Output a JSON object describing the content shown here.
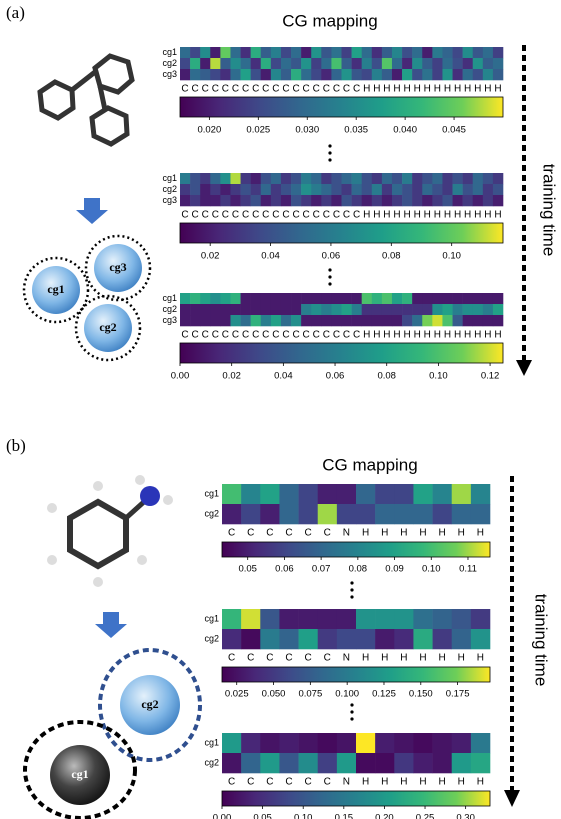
{
  "panels": [
    {
      "label": "(a)",
      "title": "CG mapping",
      "side_label": "training time",
      "beads": [
        "cg1",
        "cg3",
        "cg2"
      ]
    },
    {
      "label": "(b)",
      "title": "CG mapping",
      "side_label": "training time",
      "beads": [
        "cg2",
        "cg1"
      ]
    }
  ],
  "chart_data": [
    {
      "type": "heatmap",
      "colormap": "viridis",
      "row_labels": [
        "cg1",
        "cg2",
        "cg3"
      ],
      "col_labels": [
        "C",
        "C",
        "C",
        "C",
        "C",
        "C",
        "C",
        "C",
        "C",
        "C",
        "C",
        "C",
        "C",
        "C",
        "C",
        "C",
        "C",
        "C",
        "H",
        "H",
        "H",
        "H",
        "H",
        "H",
        "H",
        "H",
        "H",
        "H",
        "H",
        "H",
        "H",
        "H"
      ],
      "values": [
        [
          0.03,
          0.025,
          0.035,
          0.02,
          0.045,
          0.03,
          0.022,
          0.04,
          0.028,
          0.033,
          0.025,
          0.03,
          0.02,
          0.036,
          0.027,
          0.031,
          0.024,
          0.038,
          0.03,
          0.022,
          0.028,
          0.034,
          0.026,
          0.03,
          0.02,
          0.032,
          0.029,
          0.025,
          0.035,
          0.027,
          0.03,
          0.024
        ],
        [
          0.025,
          0.04,
          0.02,
          0.048,
          0.028,
          0.035,
          0.03,
          0.022,
          0.04,
          0.025,
          0.03,
          0.027,
          0.036,
          0.024,
          0.03,
          0.043,
          0.028,
          0.022,
          0.033,
          0.026,
          0.044,
          0.03,
          0.021,
          0.035,
          0.028,
          0.024,
          0.03,
          0.026,
          0.022,
          0.036,
          0.028,
          0.03
        ],
        [
          0.02,
          0.03,
          0.028,
          0.025,
          0.022,
          0.03,
          0.038,
          0.026,
          0.02,
          0.034,
          0.028,
          0.04,
          0.03,
          0.025,
          0.021,
          0.029,
          0.036,
          0.027,
          0.025,
          0.033,
          0.028,
          0.02,
          0.038,
          0.026,
          0.031,
          0.024,
          0.036,
          0.022,
          0.03,
          0.026,
          0.034,
          0.028
        ]
      ],
      "clim": [
        0.017,
        0.05
      ],
      "cticks": [
        {
          "value": 0.02,
          "label": "0.020"
        },
        0.025,
        {
          "value": 0.03,
          "label": "0.030"
        },
        0.035,
        {
          "value": 0.04,
          "label": "0.040"
        },
        0.045
      ]
    },
    {
      "type": "heatmap",
      "colormap": "viridis",
      "row_labels": [
        "cg1",
        "cg2",
        "cg3"
      ],
      "col_labels": [
        "C",
        "C",
        "C",
        "C",
        "C",
        "C",
        "C",
        "C",
        "C",
        "C",
        "C",
        "C",
        "C",
        "C",
        "C",
        "C",
        "C",
        "C",
        "H",
        "H",
        "H",
        "H",
        "H",
        "H",
        "H",
        "H",
        "H",
        "H",
        "H",
        "H",
        "H",
        "H"
      ],
      "values": [
        [
          0.06,
          0.04,
          0.03,
          0.05,
          0.07,
          0.11,
          0.03,
          0.02,
          0.04,
          0.05,
          0.03,
          0.04,
          0.06,
          0.05,
          0.03,
          0.04,
          0.05,
          0.06,
          0.04,
          0.03,
          0.05,
          0.04,
          0.06,
          0.03,
          0.04,
          0.05,
          0.03,
          0.04,
          0.03,
          0.05,
          0.04,
          0.03
        ],
        [
          0.03,
          0.04,
          0.02,
          0.03,
          0.02,
          0.03,
          0.04,
          0.03,
          0.05,
          0.03,
          0.04,
          0.05,
          0.07,
          0.06,
          0.05,
          0.04,
          0.03,
          0.05,
          0.04,
          0.06,
          0.03,
          0.05,
          0.04,
          0.03,
          0.05,
          0.04,
          0.03,
          0.06,
          0.04,
          0.05,
          0.03,
          0.04
        ],
        [
          0.02,
          0.03,
          0.02,
          0.02,
          0.03,
          0.02,
          0.03,
          0.04,
          0.02,
          0.03,
          0.02,
          0.04,
          0.03,
          0.02,
          0.03,
          0.02,
          0.04,
          0.03,
          0.02,
          0.03,
          0.02,
          0.03,
          0.04,
          0.03,
          0.02,
          0.03,
          0.04,
          0.02,
          0.03,
          0.02,
          0.03,
          0.02
        ]
      ],
      "clim": [
        0.01,
        0.117
      ],
      "cticks": [
        0.02,
        0.04,
        0.06,
        0.08,
        {
          "value": 0.1,
          "label": "0.10"
        }
      ]
    },
    {
      "type": "heatmap",
      "colormap": "viridis",
      "row_labels": [
        "cg1",
        "cg2",
        "cg3"
      ],
      "col_labels": [
        "C",
        "C",
        "C",
        "C",
        "C",
        "C",
        "C",
        "C",
        "C",
        "C",
        "C",
        "C",
        "C",
        "C",
        "C",
        "C",
        "C",
        "C",
        "H",
        "H",
        "H",
        "H",
        "H",
        "H",
        "H",
        "H",
        "H",
        "H",
        "H",
        "H",
        "H",
        "H"
      ],
      "values": [
        [
          0.08,
          0.09,
          0.08,
          0.07,
          0.08,
          0.09,
          0.01,
          0.01,
          0.01,
          0.01,
          0.01,
          0.01,
          0.01,
          0.01,
          0.01,
          0.01,
          0.01,
          0.01,
          0.1,
          0.09,
          0.1,
          0.08,
          0.09,
          0.01,
          0.01,
          0.01,
          0.01,
          0.01,
          0.01,
          0.01,
          0.01,
          0.01
        ],
        [
          0.01,
          0.01,
          0.01,
          0.01,
          0.01,
          0.01,
          0.01,
          0.01,
          0.01,
          0.01,
          0.01,
          0.01,
          0.06,
          0.07,
          0.06,
          0.07,
          0.08,
          0.06,
          0.02,
          0.02,
          0.02,
          0.02,
          0.02,
          0.02,
          0.02,
          0.07,
          0.08,
          0.06,
          0.07,
          0.07,
          0.06,
          0.08
        ],
        [
          0.01,
          0.01,
          0.01,
          0.01,
          0.01,
          0.07,
          0.05,
          0.09,
          0.06,
          0.08,
          0.05,
          0.07,
          0.01,
          0.01,
          0.01,
          0.01,
          0.01,
          0.01,
          0.01,
          0.01,
          0.01,
          0.01,
          0.03,
          0.05,
          0.11,
          0.12,
          0.1,
          0.04,
          0.01,
          0.01,
          0.01,
          0.01
        ]
      ],
      "clim": [
        0,
        0.125
      ],
      "cticks": [
        {
          "value": 0,
          "label": "0.00"
        },
        0.02,
        0.04,
        0.06,
        0.08,
        {
          "value": 0.1,
          "label": "0.10"
        },
        0.12
      ]
    },
    {
      "type": "heatmap",
      "colormap": "viridis",
      "row_labels": [
        "cg1",
        "cg2"
      ],
      "col_labels": [
        "C",
        "C",
        "C",
        "C",
        "C",
        "C",
        "N",
        "H",
        "H",
        "H",
        "H",
        "H",
        "H",
        "H"
      ],
      "values": [
        [
          0.1,
          0.08,
          0.09,
          0.07,
          0.06,
          0.05,
          0.05,
          0.07,
          0.06,
          0.06,
          0.09,
          0.08,
          0.11,
          0.08
        ],
        [
          0.05,
          0.06,
          0.05,
          0.07,
          0.06,
          0.11,
          0.06,
          0.06,
          0.07,
          0.07,
          0.07,
          0.06,
          0.07,
          0.07
        ]
      ],
      "clim": [
        0.043,
        0.116
      ],
      "cticks": [
        0.05,
        0.06,
        0.07,
        0.08,
        0.09,
        {
          "value": 0.1,
          "label": "0.10"
        },
        0.11
      ]
    },
    {
      "type": "heatmap",
      "colormap": "viridis",
      "row_labels": [
        "cg1",
        "cg2"
      ],
      "col_labels": [
        "C",
        "C",
        "C",
        "C",
        "C",
        "C",
        "N",
        "H",
        "H",
        "H",
        "H",
        "H",
        "H",
        "H"
      ],
      "values": [
        [
          0.15,
          0.19,
          0.07,
          0.03,
          0.03,
          0.03,
          0.03,
          0.12,
          0.12,
          0.12,
          0.09,
          0.08,
          0.07,
          0.05
        ],
        [
          0.04,
          0.02,
          0.1,
          0.08,
          0.13,
          0.05,
          0.06,
          0.06,
          0.03,
          0.04,
          0.14,
          0.05,
          0.08,
          0.12
        ]
      ],
      "clim": [
        0.015,
        0.197
      ],
      "cticks": [
        0.025,
        {
          "value": 0.05,
          "label": "0.050"
        },
        0.075,
        {
          "value": 0.1,
          "label": "0.100"
        },
        0.125,
        {
          "value": 0.15,
          "label": "0.150"
        },
        0.175
      ]
    },
    {
      "type": "heatmap",
      "colormap": "viridis",
      "row_labels": [
        "cg1",
        "cg2"
      ],
      "col_labels": [
        "C",
        "C",
        "C",
        "C",
        "C",
        "C",
        "N",
        "H",
        "H",
        "H",
        "H",
        "H",
        "H",
        "H"
      ],
      "values": [
        [
          0.2,
          0.04,
          0.02,
          0.03,
          0.02,
          0.01,
          0.02,
          0.33,
          0.03,
          0.02,
          0.01,
          0.02,
          0.03,
          0.15
        ],
        [
          0.02,
          0.12,
          0.2,
          0.1,
          0.18,
          0.07,
          0.2,
          0.01,
          0.01,
          0.06,
          0.03,
          0.02,
          0.2,
          0.22
        ]
      ],
      "clim": [
        0,
        0.33
      ],
      "cticks": [
        {
          "value": 0,
          "label": "0.00"
        },
        0.05,
        {
          "value": 0.1,
          "label": "0.10"
        },
        0.15,
        {
          "value": 0.2,
          "label": "0.20"
        },
        0.25,
        {
          "value": 0.3,
          "label": "0.30"
        }
      ]
    }
  ]
}
